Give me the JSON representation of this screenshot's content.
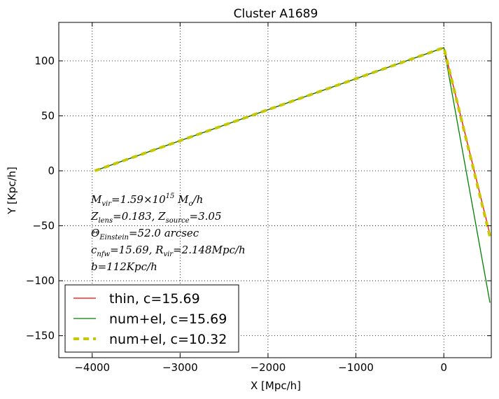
{
  "chart_data": {
    "type": "line",
    "title": "Cluster A1689",
    "xlabel": "X [Mpc/h]",
    "ylabel": "Y [Kpc/h]",
    "xlim": [
      -4380,
      540
    ],
    "ylim": [
      -170,
      135
    ],
    "xticks": [
      -4000,
      -3000,
      -2000,
      -1000,
      0
    ],
    "yticks": [
      100,
      50,
      0,
      -50,
      -100,
      -150
    ],
    "xtick_labels": [
      "−4000",
      "−3000",
      "−2000",
      "−1000",
      "0"
    ],
    "ytick_labels": [
      "100",
      "50",
      "0",
      "−50",
      "−100",
      "−150"
    ],
    "grid": true,
    "legend_position": "lower-left",
    "series": [
      {
        "name": "thin, c=15.69",
        "color": "#ff0000",
        "style": "solid",
        "x": [
          -3970,
          0,
          525
        ],
        "y": [
          0,
          112,
          -58
        ]
      },
      {
        "name": "num+el, c=15.69",
        "color": "#008000",
        "style": "solid",
        "x": [
          -3970,
          0,
          525
        ],
        "y": [
          0,
          112,
          -120
        ]
      },
      {
        "name": "num+el, c=10.32",
        "color": "#c8c800",
        "style": "dashed",
        "x": [
          -3970,
          0,
          525
        ],
        "y": [
          0,
          112,
          -60
        ]
      }
    ],
    "annotations": [
      {
        "parts": [
          [
            "M",
            ""
          ],
          [
            "vir",
            "sub"
          ],
          [
            "=1.59×10",
            ""
          ],
          [
            "15",
            "sup"
          ],
          [
            " M",
            ""
          ],
          [
            "o",
            "sub"
          ],
          [
            "/h",
            ""
          ]
        ]
      },
      {
        "parts": [
          [
            "Z",
            ""
          ],
          [
            "lens",
            "sub"
          ],
          [
            "=0.183, Z",
            ""
          ],
          [
            "source",
            "sub"
          ],
          [
            "=3.05",
            ""
          ]
        ]
      },
      {
        "parts": [
          [
            "Θ",
            ""
          ],
          [
            "Einstein",
            "sub"
          ],
          [
            "=52.0 arcsec",
            ""
          ]
        ]
      },
      {
        "parts": [
          [
            "c",
            ""
          ],
          [
            "nfw",
            "sub"
          ],
          [
            "=15.69, R",
            ""
          ],
          [
            "vir",
            "sub"
          ],
          [
            "=2.148Mpc/h",
            ""
          ]
        ]
      },
      {
        "parts": [
          [
            "b=112Kpc/h",
            ""
          ]
        ]
      }
    ]
  }
}
